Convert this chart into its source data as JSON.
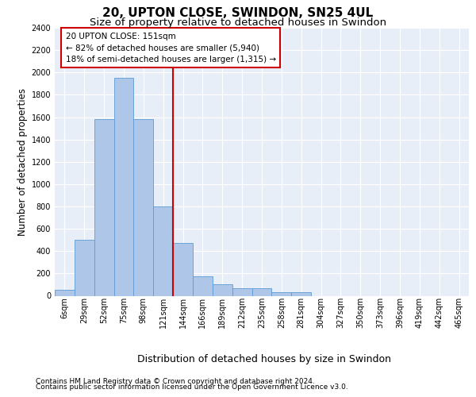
{
  "title_line1": "20, UPTON CLOSE, SWINDON, SN25 4UL",
  "title_line2": "Size of property relative to detached houses in Swindon",
  "xlabel": "Distribution of detached houses by size in Swindon",
  "ylabel": "Number of detached properties",
  "footer_line1": "Contains HM Land Registry data © Crown copyright and database right 2024.",
  "footer_line2": "Contains public sector information licensed under the Open Government Licence v3.0.",
  "categories": [
    "6sqm",
    "29sqm",
    "52sqm",
    "75sqm",
    "98sqm",
    "121sqm",
    "144sqm",
    "166sqm",
    "189sqm",
    "212sqm",
    "235sqm",
    "258sqm",
    "281sqm",
    "304sqm",
    "327sqm",
    "350sqm",
    "373sqm",
    "396sqm",
    "419sqm",
    "442sqm",
    "465sqm"
  ],
  "values": [
    50,
    500,
    1580,
    1950,
    1580,
    800,
    470,
    175,
    100,
    65,
    65,
    30,
    30,
    0,
    0,
    0,
    0,
    0,
    0,
    0,
    0
  ],
  "bar_color": "#AEC6E8",
  "bar_edge_color": "#5B9BD5",
  "vline_index": 6,
  "vline_color": "#CC0000",
  "annotation_text": "20 UPTON CLOSE: 151sqm\n← 82% of detached houses are smaller (5,940)\n18% of semi-detached houses are larger (1,315) →",
  "annotation_box_color": "#FFFFFF",
  "annotation_box_edge": "#CC0000",
  "ylim_max": 2400,
  "yticks": [
    0,
    200,
    400,
    600,
    800,
    1000,
    1200,
    1400,
    1600,
    1800,
    2000,
    2200,
    2400
  ],
  "background_color": "#E8EEF7",
  "grid_color": "#FFFFFF",
  "title_fontsize": 11,
  "subtitle_fontsize": 9.5,
  "ylabel_fontsize": 8.5,
  "xlabel_fontsize": 9,
  "tick_fontsize": 7,
  "annot_fontsize": 7.5,
  "footer_fontsize": 6.5
}
